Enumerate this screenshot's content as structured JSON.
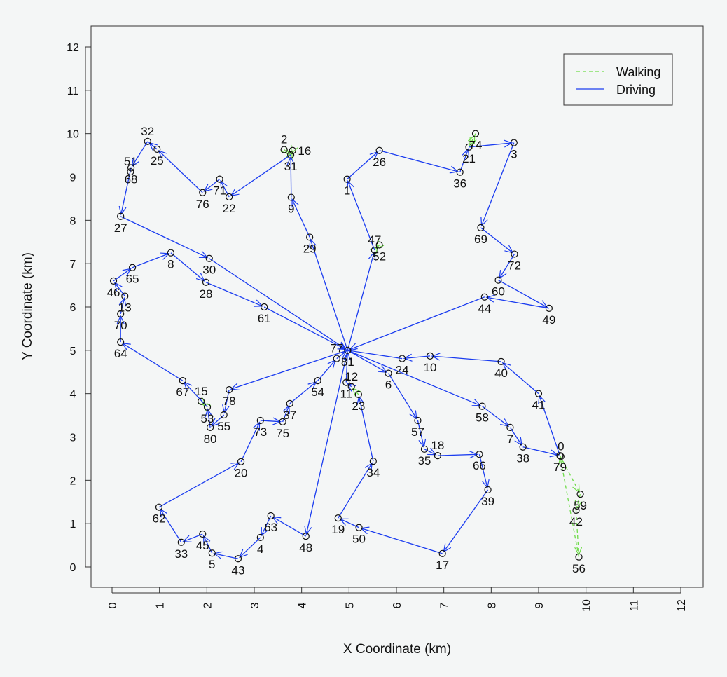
{
  "chart_data": {
    "type": "scatter",
    "title": "",
    "xlabel": "X Coordinate (km)",
    "ylabel": "Y Coordinate (km)",
    "xlim": [
      0,
      12
    ],
    "ylim": [
      0,
      12
    ],
    "xticks": [
      "0",
      "1",
      "2",
      "3",
      "4",
      "5",
      "6",
      "7",
      "8",
      "9",
      "10",
      "11",
      "12"
    ],
    "yticks": [
      "0",
      "1",
      "2",
      "3",
      "4",
      "5",
      "6",
      "7",
      "8",
      "9",
      "10",
      "11",
      "12"
    ],
    "grid": false,
    "legend": {
      "placement": "top-right",
      "entries": [
        {
          "name": "Walking",
          "color": "#6fdc4a",
          "style": "dashed"
        },
        {
          "name": "Driving",
          "color": "#1a3cf0",
          "style": "solid"
        }
      ]
    },
    "nodes": [
      {
        "id": "81",
        "x": 4.97,
        "y": 5.0
      },
      {
        "id": "77",
        "x": 4.74,
        "y": 4.81
      },
      {
        "id": "1",
        "x": 4.96,
        "y": 8.95
      },
      {
        "id": "26",
        "x": 5.64,
        "y": 9.61
      },
      {
        "id": "36",
        "x": 7.34,
        "y": 9.11
      },
      {
        "id": "21",
        "x": 7.53,
        "y": 9.69
      },
      {
        "id": "74",
        "x": 7.67,
        "y": 10.0
      },
      {
        "id": "3",
        "x": 8.48,
        "y": 9.79
      },
      {
        "id": "69",
        "x": 7.78,
        "y": 7.83
      },
      {
        "id": "72",
        "x": 8.49,
        "y": 7.22
      },
      {
        "id": "60",
        "x": 8.15,
        "y": 6.62
      },
      {
        "id": "49",
        "x": 9.22,
        "y": 5.97
      },
      {
        "id": "44",
        "x": 7.86,
        "y": 6.23
      },
      {
        "id": "9",
        "x": 3.78,
        "y": 8.53
      },
      {
        "id": "29",
        "x": 4.17,
        "y": 7.61
      },
      {
        "id": "31",
        "x": 3.77,
        "y": 9.51
      },
      {
        "id": "2",
        "x": 3.63,
        "y": 9.63
      },
      {
        "id": "16",
        "x": 3.81,
        "y": 9.61
      },
      {
        "id": "22",
        "x": 2.47,
        "y": 8.54
      },
      {
        "id": "71",
        "x": 2.27,
        "y": 8.95
      },
      {
        "id": "76",
        "x": 1.91,
        "y": 8.64
      },
      {
        "id": "25",
        "x": 0.95,
        "y": 9.64
      },
      {
        "id": "32",
        "x": 0.75,
        "y": 9.82
      },
      {
        "id": "68",
        "x": 0.4,
        "y": 9.21
      },
      {
        "id": "51",
        "x": 0.39,
        "y": 9.12
      },
      {
        "id": "27",
        "x": 0.18,
        "y": 8.09
      },
      {
        "id": "30",
        "x": 2.05,
        "y": 7.12
      },
      {
        "id": "8",
        "x": 1.24,
        "y": 7.25
      },
      {
        "id": "65",
        "x": 0.43,
        "y": 6.91
      },
      {
        "id": "46",
        "x": 0.03,
        "y": 6.6
      },
      {
        "id": "13",
        "x": 0.27,
        "y": 6.25
      },
      {
        "id": "70",
        "x": 0.18,
        "y": 5.84
      },
      {
        "id": "64",
        "x": 0.18,
        "y": 5.19
      },
      {
        "id": "28",
        "x": 1.98,
        "y": 6.57
      },
      {
        "id": "61",
        "x": 3.21,
        "y": 6.0
      },
      {
        "id": "52",
        "x": 5.64,
        "y": 7.43
      },
      {
        "id": "47",
        "x": 5.54,
        "y": 7.31
      },
      {
        "id": "24",
        "x": 6.12,
        "y": 4.81
      },
      {
        "id": "10",
        "x": 6.71,
        "y": 4.87
      },
      {
        "id": "40",
        "x": 8.21,
        "y": 4.74
      },
      {
        "id": "41",
        "x": 9.0,
        "y": 4.0
      },
      {
        "id": "6",
        "x": 5.83,
        "y": 4.47
      },
      {
        "id": "58",
        "x": 7.81,
        "y": 3.71
      },
      {
        "id": "7",
        "x": 8.4,
        "y": 3.22
      },
      {
        "id": "38",
        "x": 8.67,
        "y": 2.77
      },
      {
        "id": "79",
        "x": 9.45,
        "y": 2.57
      },
      {
        "id": "0",
        "x": 9.47,
        "y": 2.55
      },
      {
        "id": "59",
        "x": 9.88,
        "y": 1.68
      },
      {
        "id": "42",
        "x": 9.79,
        "y": 1.31
      },
      {
        "id": "56",
        "x": 9.85,
        "y": 0.23
      },
      {
        "id": "57",
        "x": 6.45,
        "y": 3.38
      },
      {
        "id": "35",
        "x": 6.59,
        "y": 2.72
      },
      {
        "id": "18",
        "x": 6.87,
        "y": 2.57
      },
      {
        "id": "66",
        "x": 7.75,
        "y": 2.6
      },
      {
        "id": "39",
        "x": 7.93,
        "y": 1.78
      },
      {
        "id": "17",
        "x": 6.97,
        "y": 0.31
      },
      {
        "id": "50",
        "x": 5.21,
        "y": 0.91
      },
      {
        "id": "19",
        "x": 4.77,
        "y": 1.13
      },
      {
        "id": "34",
        "x": 5.51,
        "y": 2.44
      },
      {
        "id": "11",
        "x": 4.94,
        "y": 4.26
      },
      {
        "id": "12",
        "x": 5.05,
        "y": 4.16
      },
      {
        "id": "23",
        "x": 5.2,
        "y": 3.98
      },
      {
        "id": "54",
        "x": 4.34,
        "y": 4.3
      },
      {
        "id": "37",
        "x": 3.75,
        "y": 3.77
      },
      {
        "id": "75",
        "x": 3.6,
        "y": 3.35
      },
      {
        "id": "73",
        "x": 3.13,
        "y": 3.38
      },
      {
        "id": "20",
        "x": 2.72,
        "y": 2.43
      },
      {
        "id": "62",
        "x": 0.99,
        "y": 1.38
      },
      {
        "id": "33",
        "x": 1.46,
        "y": 0.57
      },
      {
        "id": "45",
        "x": 1.91,
        "y": 0.76
      },
      {
        "id": "5",
        "x": 2.11,
        "y": 0.32
      },
      {
        "id": "43",
        "x": 2.66,
        "y": 0.19
      },
      {
        "id": "4",
        "x": 3.13,
        "y": 0.68
      },
      {
        "id": "63",
        "x": 3.35,
        "y": 1.18
      },
      {
        "id": "48",
        "x": 4.09,
        "y": 0.71
      },
      {
        "id": "78",
        "x": 2.47,
        "y": 4.09
      },
      {
        "id": "55",
        "x": 2.36,
        "y": 3.51
      },
      {
        "id": "80",
        "x": 2.07,
        "y": 3.22
      },
      {
        "id": "53",
        "x": 2.01,
        "y": 3.69
      },
      {
        "id": "15",
        "x": 1.88,
        "y": 3.82
      },
      {
        "id": "67",
        "x": 1.49,
        "y": 4.3
      }
    ],
    "driving_routes": [
      [
        "81",
        "47",
        "1",
        "26",
        "36",
        "21",
        "3",
        "69",
        "72",
        "60",
        "49",
        "44",
        "81"
      ],
      [
        "81",
        "29",
        "9",
        "31",
        "22",
        "71",
        "76",
        "25",
        "32",
        "68",
        "27",
        "30",
        "81"
      ],
      [
        "81",
        "78",
        "55",
        "80",
        "53",
        "67",
        "64",
        "70",
        "13",
        "46",
        "65",
        "8",
        "28",
        "61",
        "81"
      ],
      [
        "81",
        "58",
        "7",
        "38",
        "79",
        "41",
        "40",
        "10",
        "24",
        "81"
      ],
      [
        "81",
        "6",
        "57",
        "35",
        "18",
        "66",
        "39",
        "17",
        "50",
        "19",
        "34",
        "23"
      ],
      [
        "12",
        "11",
        "81"
      ],
      [
        "81",
        "48",
        "63",
        "4",
        "43",
        "5",
        "45",
        "33",
        "62",
        "20",
        "73",
        "75",
        "37",
        "54",
        "77",
        "81"
      ]
    ],
    "walking_routes": [
      [
        "21",
        "74",
        "21"
      ],
      [
        "31",
        "2",
        "31"
      ],
      [
        "31",
        "16",
        "31"
      ],
      [
        "47",
        "52",
        "47"
      ],
      [
        "53",
        "15",
        "53"
      ],
      [
        "23",
        "12"
      ],
      [
        "79",
        "59",
        "42",
        "56",
        "79"
      ]
    ]
  }
}
